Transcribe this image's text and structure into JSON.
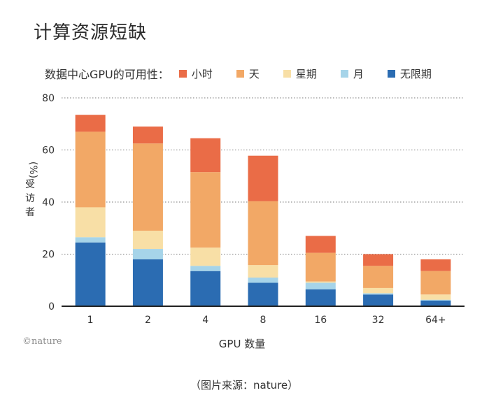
{
  "title": "计算资源短缺",
  "legend_title": "数据中心GPU的可用性：",
  "logo": "©nature",
  "credit": "（图片来源：nature）",
  "chart_data": {
    "type": "bar",
    "stacked": true,
    "xlabel": "GPU 数量",
    "ylabel": "受访者 (%)",
    "ylabel_main": "受访者",
    "ylabel_unit": "(%)",
    "ylim": [
      0,
      80
    ],
    "yticks": [
      0,
      20,
      40,
      60,
      80
    ],
    "grid": "dotted horizontal",
    "legend_position": "top",
    "categories": [
      "1",
      "2",
      "4",
      "8",
      "16",
      "32",
      "64+"
    ],
    "series": [
      {
        "name": "无限期",
        "color": "#2b6cb2",
        "values": [
          24.5,
          18,
          13.5,
          9,
          6.5,
          4.5,
          2.2
        ]
      },
      {
        "name": "月",
        "color": "#a6d4e9",
        "values": [
          2,
          4,
          2,
          2,
          2.5,
          0.5,
          0.3
        ]
      },
      {
        "name": "星期",
        "color": "#f8dfa6",
        "values": [
          11.5,
          7,
          7,
          4.8,
          0.5,
          2,
          2
        ]
      },
      {
        "name": "天",
        "color": "#f2a866",
        "values": [
          29,
          33.5,
          29,
          24.5,
          11,
          8.5,
          9
        ]
      },
      {
        "name": "小时",
        "color": "#ea6c47",
        "values": [
          6.5,
          6.5,
          13,
          17.5,
          6.5,
          4.5,
          4.5
        ]
      }
    ],
    "legend_order": [
      "小时",
      "天",
      "星期",
      "月",
      "无限期"
    ]
  }
}
